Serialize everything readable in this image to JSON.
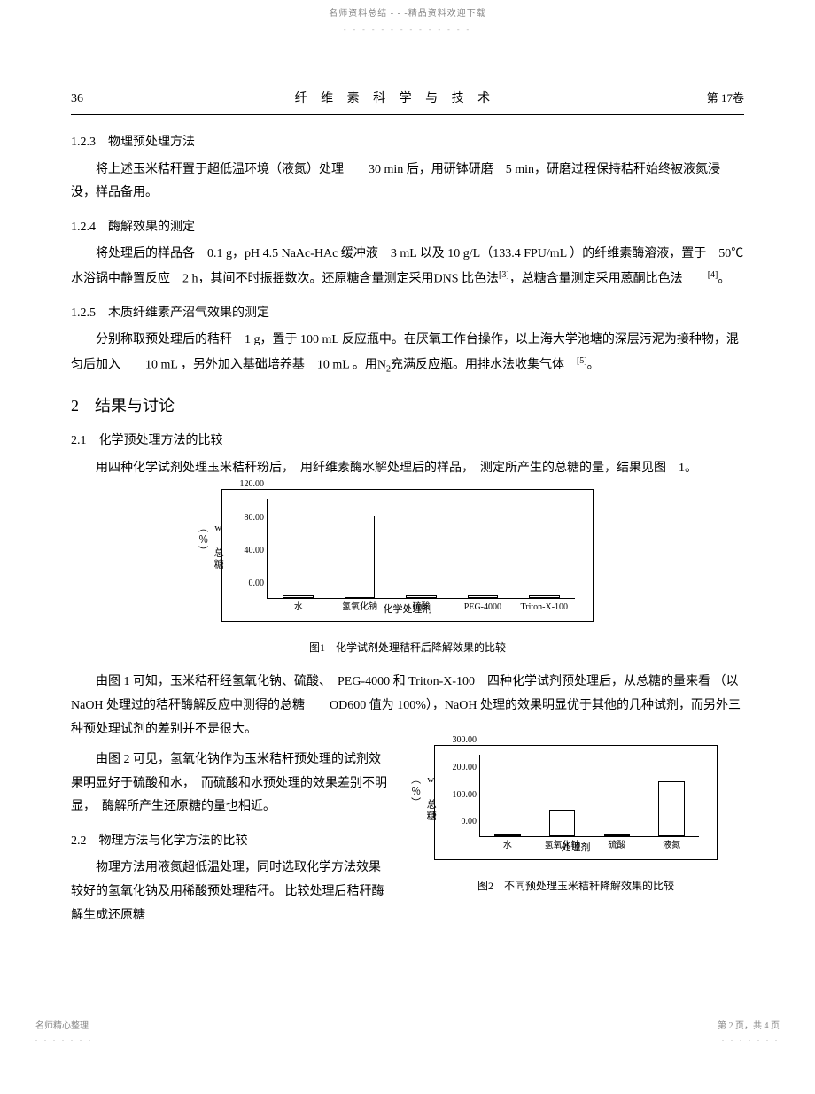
{
  "watermark": {
    "top_text": "名师资料总结 - - -精品资料欢迎下载",
    "top_dots": "- - - - - - - - - - - - - -"
  },
  "header": {
    "page_number": "36",
    "journal_title": "纤 维 素 科 学 与 技 术",
    "volume": "第 17卷"
  },
  "sections": {
    "s123": {
      "heading": "1.2.3　物理预处理方法",
      "p1": "将上述玉米秸秆置于超低温环境（液氮）处理　　30 min 后，用研钵研磨　5 min，研磨过程保持秸秆始终被液氮浸没，样品备用。"
    },
    "s124": {
      "heading": "1.2.4　酶解效果的测定",
      "p1": "将处理后的样品各　0.1 g，pH 4.5 NaAc-HAc 缓冲液　3 mL 以及 10 g/L（133.4 FPU/mL ）的纤维素酶溶液，置于　50℃水浴锅中静置反应　2 h，其间不时振摇数次。还原糖含量测定采用DNS 比色法",
      "ref1": "[3]",
      "p1b": "，总糖含量测定采用蒽酮比色法　　",
      "ref2": "[4]",
      "p1c": "。"
    },
    "s125": {
      "heading": "1.2.5　木质纤维素产沼气效果的测定",
      "p1": "分别称取预处理后的秸秆　1 g，置于 100 mL 反应瓶中。在厌氧工作台操作，以上海大学池塘的深层污泥为接种物，混匀后加入　　10 mL ，另外加入基础培养基　10 mL 。用N",
      "sub1": "2",
      "p1b": "充满反应瓶。用排水法收集气体　",
      "ref1": "[5]",
      "p1c": "。"
    },
    "s2": {
      "heading": "2　结果与讨论"
    },
    "s21": {
      "heading": "2.1　化学预处理方法的比较",
      "p1": "用四种化学试剂处理玉米秸秆粉后，　用纤维素酶水解处理后的样品，　测定所产生的总糖的量，结果见图　1。",
      "p2": "由图 1 可知，玉米秸秆经氢氧化钠、硫酸、　PEG-4000 和 Triton-X-100　四种化学试剂预处理后，从总糖的量来看 （以 NaOH 处理过的秸秆酶解反应中测得的总糖　　OD600 值为 100%），NaOH 处理的效果明显优于其他的几种试剂，而另外三种预处理试剂的差别并不是很大。",
      "p3": "由图 2 可见，氢氧化钠作为玉米秸杆预处理的试剂效果明显好于硫酸和水，　而硫酸和水预处理的效果差别不明显，　酶解所产生还原糖的量也相近。"
    },
    "s22": {
      "heading": "2.2　物理方法与化学方法的比较",
      "p1": "物理方法用液氮超低温处理，同时选取化学方法效果较好的氢氧化钠及用稀酸预处理秸秆。 比较处理后秸秆酶解生成还原糖"
    }
  },
  "chart1": {
    "y_label": "w 总糖（％）",
    "y_ticks": [
      "0.00",
      "40.00",
      "80.00",
      "120.00"
    ],
    "y_max": 120,
    "categories": [
      "水",
      "氢氧化钠",
      "硫酸",
      "PEG-4000",
      "Triton-X-100"
    ],
    "values": [
      3,
      100,
      3,
      3,
      3
    ],
    "x_axis_title": "化学处理剂",
    "caption": "图1　化学试剂处理秸秆后降解效果的比较",
    "bar_color": "#ffffff",
    "border_color": "#000000",
    "bar_width_pct": 10
  },
  "chart2": {
    "y_label": "w 总糖（％）",
    "y_ticks": [
      "0.00",
      "100.00",
      "200.00",
      "300.00"
    ],
    "y_max": 300,
    "categories": [
      "水",
      "氢氧化钠",
      "硫酸",
      "液氮"
    ],
    "values": [
      3,
      100,
      3,
      203
    ],
    "x_axis_title": "处理剂",
    "caption": "图2　不同预处理玉米秸秆降解效果的比较",
    "bar_color": "#ffffff",
    "border_color": "#000000",
    "bar_width_pct": 12
  },
  "footer": {
    "left": "名师精心整理",
    "left_dots": ". . . . . . .",
    "right": "第 2 页，共 4 页",
    "right_dots": ". . . . . . ."
  }
}
